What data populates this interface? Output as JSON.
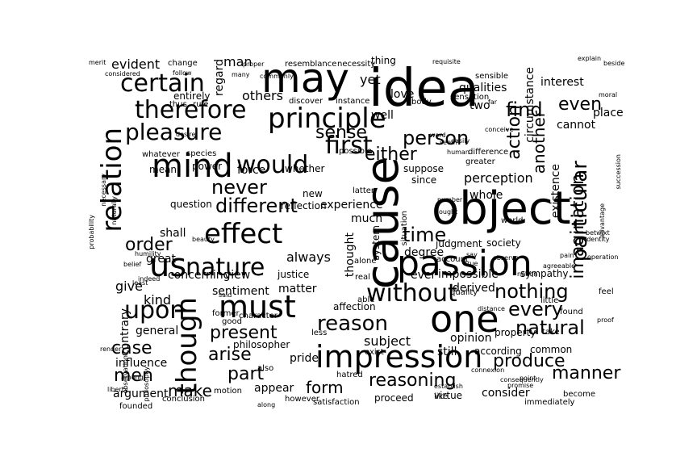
{
  "palette": {
    "purple": "#440154",
    "indigo": "#3b528b",
    "blue": "#31688e",
    "teal": "#21918c",
    "green": "#35b779",
    "lime": "#6ece58",
    "yellow": "#b5de2b",
    "gold": "#fde725"
  },
  "words": [
    {
      "text": "idea",
      "color": "teal"
    },
    {
      "text": "may",
      "color": "blue"
    },
    {
      "text": "object",
      "color": "blue"
    },
    {
      "text": "cause",
      "color": "indigo"
    },
    {
      "text": "passion",
      "color": "blue"
    },
    {
      "text": "one",
      "color": "yellow"
    },
    {
      "text": "principle",
      "color": "blue"
    },
    {
      "text": "relation",
      "color": "teal"
    },
    {
      "text": "mind",
      "color": "indigo"
    },
    {
      "text": "impression",
      "color": "blue"
    },
    {
      "text": "therefore",
      "color": "purple"
    },
    {
      "text": "certain",
      "color": "blue"
    },
    {
      "text": "pleasure",
      "color": "teal"
    },
    {
      "text": "would",
      "color": "indigo"
    },
    {
      "text": "first",
      "color": "lime"
    },
    {
      "text": "effect",
      "color": "green"
    },
    {
      "text": "nature",
      "color": "teal"
    },
    {
      "text": "us",
      "color": "indigo"
    },
    {
      "text": "must",
      "color": "purple"
    },
    {
      "text": "upon",
      "color": "indigo"
    },
    {
      "text": "though",
      "color": "indigo"
    },
    {
      "text": "reason",
      "color": "indigo"
    },
    {
      "text": "without",
      "color": "teal"
    },
    {
      "text": "imagination",
      "color": "indigo"
    },
    {
      "text": "particular",
      "color": "teal"
    },
    {
      "text": "person",
      "color": "indigo"
    },
    {
      "text": "time",
      "color": "indigo"
    },
    {
      "text": "different",
      "color": "indigo"
    },
    {
      "text": "never",
      "color": "indigo"
    },
    {
      "text": "sense",
      "color": "teal"
    },
    {
      "text": "either",
      "color": "blue"
    },
    {
      "text": "find",
      "color": "indigo"
    },
    {
      "text": "action",
      "color": "teal"
    },
    {
      "text": "another",
      "color": "indigo"
    },
    {
      "text": "even",
      "color": "indigo"
    },
    {
      "text": "circumstance",
      "color": "indigo"
    },
    {
      "text": "order",
      "color": "indigo"
    },
    {
      "text": "nothing",
      "color": "indigo"
    },
    {
      "text": "every",
      "color": "indigo"
    },
    {
      "text": "natural",
      "color": "teal"
    },
    {
      "text": "produce",
      "color": "indigo"
    },
    {
      "text": "manner",
      "color": "blue"
    },
    {
      "text": "reasoning",
      "color": "lime"
    },
    {
      "text": "present",
      "color": "indigo"
    },
    {
      "text": "case",
      "color": "teal"
    },
    {
      "text": "arise",
      "color": "indigo"
    },
    {
      "text": "part",
      "color": "indigo"
    },
    {
      "text": "men",
      "color": "indigo"
    },
    {
      "text": "make",
      "color": "indigo"
    },
    {
      "text": "form",
      "color": "indigo"
    },
    {
      "text": "subject",
      "color": "indigo"
    },
    {
      "text": "perception",
      "color": "lime"
    },
    {
      "text": "existence",
      "color": "blue"
    },
    {
      "text": "evident",
      "color": "teal"
    },
    {
      "text": "regard",
      "color": "teal"
    },
    {
      "text": "man",
      "color": "indigo"
    },
    {
      "text": "others",
      "color": "indigo"
    },
    {
      "text": "yet",
      "color": "indigo"
    },
    {
      "text": "love",
      "color": "indigo"
    },
    {
      "text": "thing",
      "color": "indigo"
    },
    {
      "text": "qualities",
      "color": "indigo"
    },
    {
      "text": "interest",
      "color": "indigo"
    },
    {
      "text": "two",
      "color": "indigo"
    },
    {
      "text": "cannot",
      "color": "indigo"
    },
    {
      "text": "place",
      "color": "indigo"
    },
    {
      "text": "experience",
      "color": "indigo"
    },
    {
      "text": "much",
      "color": "indigo"
    },
    {
      "text": "whole",
      "color": "indigo"
    },
    {
      "text": "thought",
      "color": "indigo"
    },
    {
      "text": "degree",
      "color": "indigo"
    },
    {
      "text": "impossible",
      "color": "teal"
    },
    {
      "text": "derived",
      "color": "indigo"
    },
    {
      "text": "opinion",
      "color": "indigo"
    },
    {
      "text": "ever",
      "color": "indigo"
    },
    {
      "text": "matter",
      "color": "indigo"
    },
    {
      "text": "sentiment",
      "color": "gold"
    },
    {
      "text": "kind",
      "color": "indigo"
    },
    {
      "text": "give",
      "color": "indigo"
    },
    {
      "text": "always",
      "color": "indigo"
    },
    {
      "text": "view",
      "color": "indigo"
    },
    {
      "text": "concerning",
      "color": "indigo"
    },
    {
      "text": "great",
      "color": "indigo"
    },
    {
      "text": "shall",
      "color": "teal"
    },
    {
      "text": "force",
      "color": "indigo"
    },
    {
      "text": "mean",
      "color": "indigo"
    },
    {
      "text": "power",
      "color": "indigo"
    },
    {
      "text": "general",
      "color": "gold"
    },
    {
      "text": "influence",
      "color": "indigo"
    },
    {
      "text": "argument",
      "color": "indigo"
    },
    {
      "text": "contrary",
      "color": "indigo"
    },
    {
      "text": "appear",
      "color": "indigo"
    },
    {
      "text": "pride",
      "color": "indigo"
    },
    {
      "text": "philosopher",
      "color": "indigo"
    },
    {
      "text": "still",
      "color": "indigo"
    },
    {
      "text": "according",
      "color": "indigo"
    },
    {
      "text": "common",
      "color": "indigo"
    },
    {
      "text": "consider",
      "color": "indigo"
    },
    {
      "text": "virtue",
      "color": "indigo"
    },
    {
      "text": "proceed",
      "color": "yellow"
    },
    {
      "text": "well",
      "color": "indigo"
    },
    {
      "text": "since",
      "color": "indigo"
    },
    {
      "text": "new",
      "color": "indigo"
    },
    {
      "text": "suppose",
      "color": "indigo"
    },
    {
      "text": "whether",
      "color": "indigo"
    },
    {
      "text": "change",
      "color": "gold"
    },
    {
      "text": "resemblance",
      "color": "indigo"
    },
    {
      "text": "necessity",
      "color": "indigo"
    },
    {
      "text": "entirely",
      "color": "indigo"
    },
    {
      "text": "sympathy",
      "color": "indigo"
    },
    {
      "text": "justice",
      "color": "indigo"
    },
    {
      "text": "reflection",
      "color": "indigo"
    },
    {
      "text": "question",
      "color": "indigo"
    },
    {
      "text": "society",
      "color": "indigo"
    },
    {
      "text": "property",
      "color": "indigo"
    },
    {
      "text": "system",
      "color": "indigo"
    },
    {
      "text": "judgment",
      "color": "indigo"
    },
    {
      "text": "affection",
      "color": "indigo"
    },
    {
      "text": "quality",
      "color": "indigo"
    },
    {
      "text": "character",
      "color": "indigo"
    },
    {
      "text": "former",
      "color": "indigo"
    },
    {
      "text": "good",
      "color": "indigo"
    },
    {
      "text": "hatred",
      "color": "indigo"
    },
    {
      "text": "however",
      "color": "indigo"
    },
    {
      "text": "like",
      "color": "indigo"
    },
    {
      "text": "become",
      "color": "indigo"
    },
    {
      "text": "conclusion",
      "color": "indigo"
    },
    {
      "text": "founded",
      "color": "indigo"
    },
    {
      "text": "satisfaction",
      "color": "indigo"
    },
    {
      "text": "also",
      "color": "indigo"
    },
    {
      "text": "less",
      "color": "indigo"
    },
    {
      "text": "exist",
      "color": "indigo"
    },
    {
      "text": "little",
      "color": "indigo"
    },
    {
      "text": "found",
      "color": "indigo"
    },
    {
      "text": "feel",
      "color": "indigo"
    },
    {
      "text": "take",
      "color": "indigo"
    },
    {
      "text": "immediately",
      "color": "indigo"
    },
    {
      "text": "motion",
      "color": "indigo"
    },
    {
      "text": "real",
      "color": "indigo"
    },
    {
      "text": "able",
      "color": "indigo"
    },
    {
      "text": "account",
      "color": "indigo"
    },
    {
      "text": "alone",
      "color": "indigo"
    },
    {
      "text": "latter",
      "color": "indigo"
    },
    {
      "text": "world",
      "color": "indigo"
    },
    {
      "text": "instance",
      "color": "indigo"
    },
    {
      "text": "discover",
      "color": "indigo"
    },
    {
      "text": "thus",
      "color": "indigo"
    },
    {
      "text": "body",
      "color": "indigo"
    },
    {
      "text": "rule",
      "color": "indigo"
    },
    {
      "text": "sensation",
      "color": "indigo"
    },
    {
      "text": "difference",
      "color": "indigo"
    },
    {
      "text": "species",
      "color": "indigo"
    },
    {
      "text": "whatever",
      "color": "gold"
    },
    {
      "text": "possible",
      "color": "indigo"
    },
    {
      "text": "greater",
      "color": "indigo"
    },
    {
      "text": "sensible",
      "color": "indigo"
    },
    {
      "text": "explain",
      "color": "indigo"
    },
    {
      "text": "merit",
      "color": "indigo"
    },
    {
      "text": "considered",
      "color": "indigo"
    },
    {
      "text": "follow",
      "color": "indigo"
    },
    {
      "text": "many",
      "color": "indigo"
    },
    {
      "text": "commonly",
      "color": "indigo"
    },
    {
      "text": "requisite",
      "color": "indigo"
    },
    {
      "text": "beside",
      "color": "indigo"
    },
    {
      "text": "moral",
      "color": "indigo"
    },
    {
      "text": "far",
      "color": "indigo"
    },
    {
      "text": "said",
      "color": "indigo"
    },
    {
      "text": "say",
      "color": "indigo"
    },
    {
      "text": "true",
      "color": "indigo"
    },
    {
      "text": "observe",
      "color": "indigo"
    },
    {
      "text": "agreeable",
      "color": "indigo"
    },
    {
      "text": "pain",
      "color": "indigo"
    },
    {
      "text": "necessary",
      "color": "indigo"
    },
    {
      "text": "probability",
      "color": "indigo"
    },
    {
      "text": "naturally",
      "color": "indigo"
    },
    {
      "text": "humility",
      "color": "gold"
    },
    {
      "text": "beauty",
      "color": "indigo"
    },
    {
      "text": "belief",
      "color": "indigo"
    },
    {
      "text": "least",
      "color": "indigo"
    },
    {
      "text": "render",
      "color": "indigo"
    },
    {
      "text": "philosophy",
      "color": "indigo"
    },
    {
      "text": "among",
      "color": "indigo"
    },
    {
      "text": "along",
      "color": "indigo"
    },
    {
      "text": "ought",
      "color": "indigo"
    },
    {
      "text": "seem",
      "color": "indigo"
    },
    {
      "text": "word",
      "color": "indigo"
    },
    {
      "text": "desire",
      "color": "indigo"
    },
    {
      "text": "betwixt",
      "color": "indigo"
    },
    {
      "text": "proof",
      "color": "indigo"
    },
    {
      "text": "proper",
      "color": "indigo"
    },
    {
      "text": "conceive",
      "color": "indigo"
    },
    {
      "text": "advantage",
      "color": "indigo"
    },
    {
      "text": "indeed",
      "color": "indigo"
    },
    {
      "text": "notion",
      "color": "indigo"
    },
    {
      "text": "number",
      "color": "indigo"
    },
    {
      "text": "situation",
      "color": "yellow"
    },
    {
      "text": "connexion",
      "color": "indigo"
    },
    {
      "text": "observation",
      "color": "indigo"
    },
    {
      "text": "easily",
      "color": "indigo"
    },
    {
      "text": "distance",
      "color": "indigo"
    },
    {
      "text": "human",
      "color": "indigo"
    },
    {
      "text": "consequently",
      "color": "indigo"
    },
    {
      "text": "promise",
      "color": "indigo"
    },
    {
      "text": "point",
      "color": "indigo"
    },
    {
      "text": "establish",
      "color": "indigo"
    },
    {
      "text": "succession",
      "color": "indigo"
    },
    {
      "text": "liberty",
      "color": "indigo"
    },
    {
      "text": "operation",
      "color": "indigo"
    },
    {
      "text": "identity",
      "color": "indigo"
    }
  ]
}
